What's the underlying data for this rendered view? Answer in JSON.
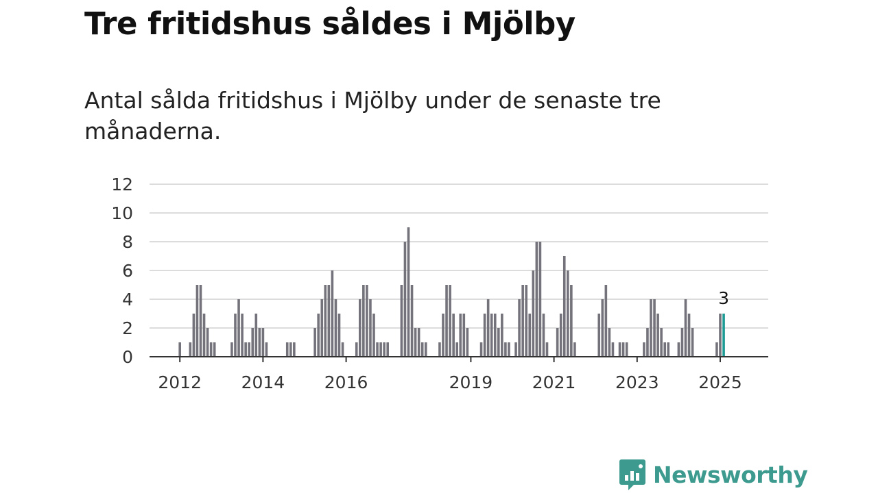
{
  "title": "Tre fritidshus såldes i Mjölby",
  "subtitle": "Antal sålda fritidshus i Mjölby under de senaste tre månaderna.",
  "brand": {
    "name": "Newsworthy",
    "color": "#3d9a8f",
    "icon": "newsworthy-logo-icon"
  },
  "colors": {
    "bar": "#74737b",
    "highlight": "#1d9a93",
    "grid": "#dcdcdc",
    "axis": "#333333"
  },
  "chart_data": {
    "type": "bar",
    "title": "Tre fritidshus såldes i Mjölby",
    "subtitle": "Antal sålda fritidshus i Mjölby under de senaste tre månaderna.",
    "xlabel": "",
    "ylabel": "",
    "ylim": [
      0,
      12
    ],
    "yticks": [
      "0",
      "2",
      "4",
      "6",
      "8",
      "10",
      "12"
    ],
    "grid": true,
    "xticks": [
      {
        "label": "2012",
        "index": 0
      },
      {
        "label": "2014",
        "index": 24
      },
      {
        "label": "2016",
        "index": 48
      },
      {
        "label": "2019",
        "index": 84
      },
      {
        "label": "2021",
        "index": 108
      },
      {
        "label": "2023",
        "index": 132
      },
      {
        "label": "2025",
        "index": 156
      }
    ],
    "start": "2012-01",
    "frequency": "monthly",
    "values": [
      1,
      0,
      0,
      1,
      3,
      5,
      5,
      3,
      2,
      1,
      1,
      0,
      0,
      0,
      0,
      1,
      3,
      4,
      3,
      1,
      1,
      2,
      3,
      2,
      2,
      1,
      0,
      0,
      0,
      0,
      0,
      1,
      1,
      1,
      0,
      0,
      0,
      0,
      0,
      2,
      3,
      4,
      5,
      5,
      6,
      4,
      3,
      1,
      0,
      0,
      0,
      1,
      4,
      5,
      5,
      4,
      3,
      1,
      1,
      1,
      1,
      0,
      0,
      0,
      5,
      8,
      9,
      5,
      2,
      2,
      1,
      1,
      0,
      0,
      0,
      1,
      3,
      5,
      5,
      3,
      1,
      3,
      3,
      2,
      0,
      0,
      0,
      1,
      3,
      4,
      3,
      3,
      2,
      3,
      1,
      1,
      0,
      1,
      4,
      5,
      5,
      3,
      6,
      8,
      8,
      3,
      1,
      0,
      0,
      2,
      3,
      7,
      6,
      5,
      1,
      0,
      0,
      0,
      0,
      0,
      0,
      3,
      4,
      5,
      2,
      1,
      0,
      1,
      1,
      1,
      0,
      0,
      0,
      0,
      1,
      2,
      4,
      4,
      3,
      2,
      1,
      1,
      0,
      0,
      1,
      2,
      4,
      3,
      2,
      0,
      0,
      0,
      0,
      0,
      0,
      1,
      3,
      3
    ],
    "highlight_index": 157,
    "highlight_label": "3"
  }
}
